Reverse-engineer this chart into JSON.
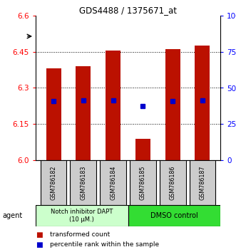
{
  "title": "GDS4488 / 1375671_at",
  "samples": [
    "GSM786182",
    "GSM786183",
    "GSM786184",
    "GSM786185",
    "GSM786186",
    "GSM786187"
  ],
  "bar_bottoms": [
    6.0,
    6.0,
    6.0,
    6.0,
    6.0,
    6.0
  ],
  "bar_tops": [
    6.38,
    6.39,
    6.455,
    6.09,
    6.46,
    6.475
  ],
  "blue_dot_y": [
    6.245,
    6.248,
    6.248,
    6.225,
    6.245,
    6.248
  ],
  "ylim": [
    6.0,
    6.6
  ],
  "y_ticks_left": [
    6.0,
    6.15,
    6.3,
    6.45,
    6.6
  ],
  "y_ticks_right": [
    0,
    25,
    50,
    75,
    100
  ],
  "y_ticks_right_labels": [
    "0",
    "25",
    "50",
    "75",
    "100%"
  ],
  "bar_color": "#bb1100",
  "blue_color": "#0000cc",
  "group1_label": "Notch inhibitor DAPT\n(10 μM.)",
  "group2_label": "DMSO control",
  "group1_color": "#ccffcc",
  "group2_color": "#33dd33",
  "agent_label": "agent",
  "legend_red": "transformed count",
  "legend_blue": "percentile rank within the sample",
  "bar_width": 0.5,
  "bg_color": "#ffffff",
  "grid_color": "#000000",
  "label_bg": "#cccccc"
}
